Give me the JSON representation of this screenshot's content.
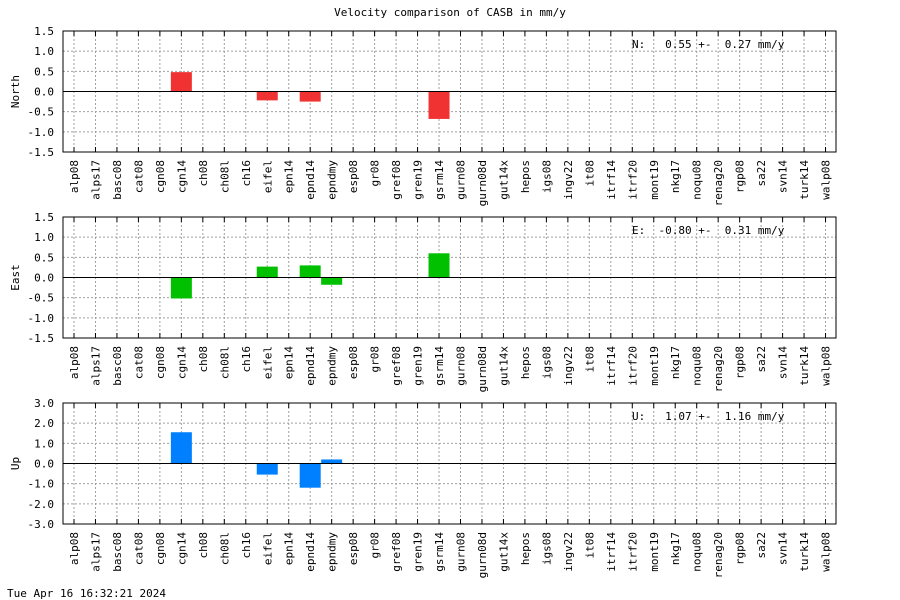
{
  "title": "Velocity comparison of CASB in mm/y",
  "footer": "Tue Apr 16 16:32:21 2024",
  "chart_data": [
    {
      "type": "bar",
      "ylabel": "North",
      "ylim": [
        -1.5,
        1.5
      ],
      "yticks": [
        "1.5",
        "1.0",
        "0.5",
        "0.0",
        "-0.5",
        "-1.0",
        "-1.5"
      ],
      "grid": true,
      "annotation": "N:   0.55 +-  0.27 mm/y",
      "color": "#f03232",
      "categories": [
        "alp08",
        "alps17",
        "basc08",
        "cat08",
        "cgn08",
        "cgn14",
        "ch08",
        "ch08l",
        "ch16",
        "eifel",
        "epn14",
        "epnd14",
        "epndmy",
        "esp08",
        "gr08",
        "gref08",
        "gren19",
        "gsrm14",
        "gurn08",
        "gurn08d",
        "gut14x",
        "hepos",
        "igs08",
        "ingv22",
        "it08",
        "itrf14",
        "itrf20",
        "mont19",
        "nkg17",
        "noqu08",
        "renag20",
        "rgp08",
        "sa22",
        "svn14",
        "turk14",
        "walp08"
      ],
      "values": [
        null,
        null,
        null,
        null,
        null,
        0.48,
        null,
        null,
        null,
        -0.22,
        null,
        -0.25,
        null,
        null,
        null,
        null,
        null,
        -0.68,
        null,
        null,
        null,
        null,
        null,
        null,
        null,
        null,
        null,
        null,
        null,
        null,
        null,
        null,
        null,
        null,
        null,
        null
      ]
    },
    {
      "type": "bar",
      "ylabel": "East",
      "ylim": [
        -1.5,
        1.5
      ],
      "yticks": [
        "1.5",
        "1.0",
        "0.5",
        "0.0",
        "-0.5",
        "-1.0",
        "-1.5"
      ],
      "grid": true,
      "annotation": "E:  -0.80 +-  0.31 mm/y",
      "color": "#00c000",
      "categories": [
        "alp08",
        "alps17",
        "basc08",
        "cat08",
        "cgn08",
        "cgn14",
        "ch08",
        "ch08l",
        "ch16",
        "eifel",
        "epn14",
        "epnd14",
        "epndmy",
        "esp08",
        "gr08",
        "gref08",
        "gren19",
        "gsrm14",
        "gurn08",
        "gurn08d",
        "gut14x",
        "hepos",
        "igs08",
        "ingv22",
        "it08",
        "itrf14",
        "itrf20",
        "mont19",
        "nkg17",
        "noqu08",
        "renag20",
        "rgp08",
        "sa22",
        "svn14",
        "turk14",
        "walp08"
      ],
      "values": [
        null,
        null,
        null,
        null,
        null,
        -0.52,
        null,
        null,
        null,
        0.27,
        null,
        0.3,
        -0.18,
        null,
        null,
        null,
        null,
        0.6,
        null,
        null,
        null,
        null,
        null,
        null,
        null,
        null,
        null,
        null,
        null,
        null,
        null,
        null,
        null,
        null,
        null,
        null
      ]
    },
    {
      "type": "bar",
      "ylabel": "Up",
      "ylim": [
        -3.0,
        3.0
      ],
      "yticks": [
        "3.0",
        "2.0",
        "1.0",
        "0.0",
        "-1.0",
        "-2.0",
        "-3.0"
      ],
      "grid": true,
      "annotation": "U:   1.07 +-  1.16 mm/y",
      "color": "#0080ff",
      "categories": [
        "alp08",
        "alps17",
        "basc08",
        "cat08",
        "cgn08",
        "cgn14",
        "ch08",
        "ch08l",
        "ch16",
        "eifel",
        "epn14",
        "epnd14",
        "epndmy",
        "esp08",
        "gr08",
        "gref08",
        "gren19",
        "gsrm14",
        "gurn08",
        "gurn08d",
        "gut14x",
        "hepos",
        "igs08",
        "ingv22",
        "it08",
        "itrf14",
        "itrf20",
        "mont19",
        "nkg17",
        "noqu08",
        "renag20",
        "rgp08",
        "sa22",
        "svn14",
        "turk14",
        "walp08"
      ],
      "values": [
        null,
        null,
        null,
        null,
        null,
        1.55,
        null,
        null,
        null,
        -0.55,
        null,
        -1.2,
        0.2,
        null,
        null,
        null,
        null,
        null,
        null,
        null,
        null,
        null,
        null,
        null,
        null,
        null,
        null,
        null,
        null,
        null,
        null,
        null,
        null,
        null,
        null,
        null
      ]
    }
  ]
}
